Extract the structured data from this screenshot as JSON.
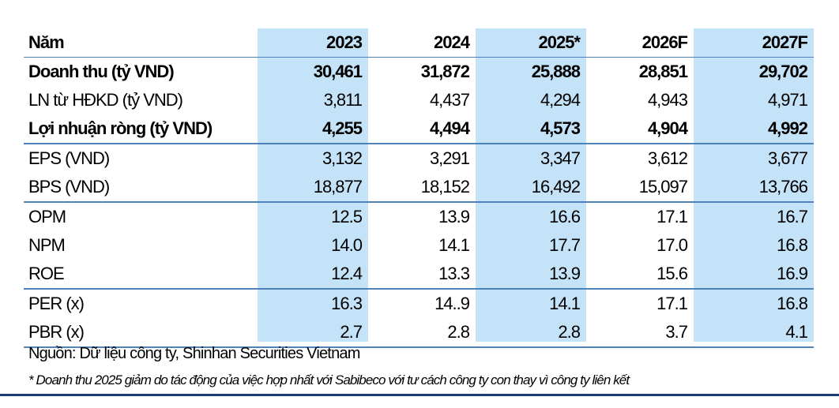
{
  "table": {
    "header": [
      "Năm",
      "2023",
      "2024",
      "2025*",
      "2026F",
      "2027F"
    ],
    "rows": [
      {
        "label": "Doanh thu (tỷ VND)",
        "values": [
          "30,461",
          "31,872",
          "25,888",
          "28,851",
          "29,702"
        ],
        "bold": true
      },
      {
        "label": "LN từ HĐKD (tỷ VND)",
        "values": [
          "3,811",
          "4,437",
          "4,294",
          "4,943",
          "4,971"
        ],
        "bold": false
      },
      {
        "label": "Lợi nhuận ròng (tỷ VND)",
        "values": [
          "4,255",
          "4,494",
          "4,573",
          "4,904",
          "4,992"
        ],
        "bold": true
      },
      {
        "label": "EPS (VND)",
        "values": [
          "3,132",
          "3,291",
          "3,347",
          "3,612",
          "3,677"
        ],
        "bold": false
      },
      {
        "label": "BPS (VND)",
        "values": [
          "18,877",
          "18,152",
          "16,492",
          "15,097",
          "13,766"
        ],
        "bold": false
      },
      {
        "label": "OPM",
        "values": [
          "12.5",
          "13.9",
          "16.6",
          "17.1",
          "16.7"
        ],
        "bold": false
      },
      {
        "label": "NPM",
        "values": [
          "14.0",
          "14.1",
          "17.7",
          "17.0",
          "16.8"
        ],
        "bold": false
      },
      {
        "label": "ROE",
        "values": [
          "12.4",
          "13.3",
          "13.9",
          "15.6",
          "16.9"
        ],
        "bold": false
      },
      {
        "label": "PER (x)",
        "values": [
          "16.3",
          "14..9",
          "14.1",
          "17.1",
          "16.8"
        ],
        "bold": false
      },
      {
        "label": "PBR (x)",
        "values": [
          "2.7",
          "2.8",
          "2.8",
          "3.7",
          "4.1"
        ],
        "bold": false
      }
    ]
  },
  "source": "Nguồn: Dữ liệu công ty, Shinhan Securities Vietnam",
  "note": "* Doanh thu 2025 giảm do tác động của việc hợp nhất với Sabibeco với tư cách công ty con thay vì công ty liên kết",
  "colors": {
    "highlight_column": "#c5e3f8",
    "rule": "#4f81bd",
    "bottom_rule": "#1f3a78"
  }
}
